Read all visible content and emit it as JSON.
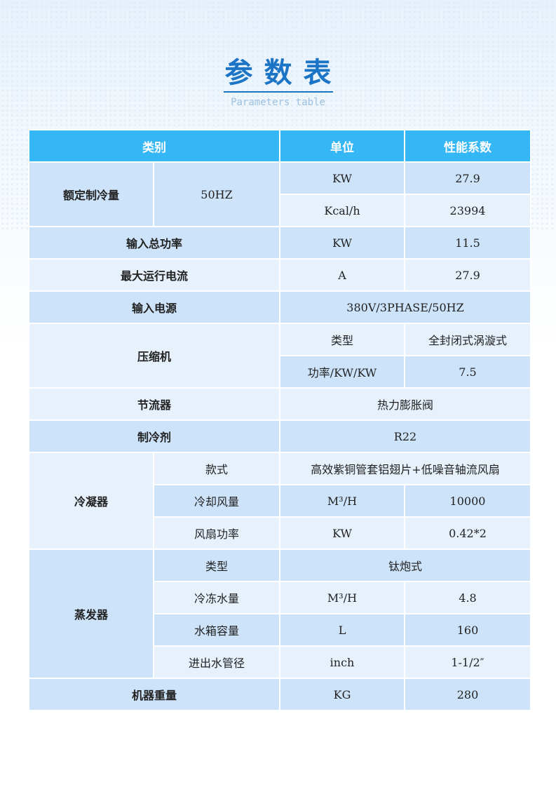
{
  "title": {
    "cn": "参数表",
    "en": "Parameters table"
  },
  "header": {
    "category": "类别",
    "unit": "单位",
    "value": "性能系数"
  },
  "rows": {
    "cooling": {
      "label": "额定制冷量",
      "freq": "50HZ",
      "unit1": "KW",
      "val1": "27.9",
      "unit2": "Kcal/h",
      "val2": "23994"
    },
    "power": {
      "label": "输入总功率",
      "unit": "KW",
      "val": "11.5"
    },
    "current": {
      "label": "最大运行电流",
      "unit": "A",
      "val": "27.9"
    },
    "supply": {
      "label": "输入电源",
      "val": "380V/3PHASE/50HZ"
    },
    "compressor": {
      "label": "压缩机",
      "type_label": "类型",
      "type_val": "全封闭式涡漩式",
      "power_label": "功率/KW/KW",
      "power_val": "7.5"
    },
    "throttle": {
      "label": "节流器",
      "val": "热力膨胀阀"
    },
    "refrigerant": {
      "label": "制冷剂",
      "val": "R22"
    },
    "condenser": {
      "label": "冷凝器",
      "style_label": "款式",
      "style_val": "高效紫铜管套铝翅片+低噪音轴流风扇",
      "air_label": "冷却风量",
      "air_unit": "M³/H",
      "air_val": "10000",
      "fan_label": "风扇功率",
      "fan_unit": "KW",
      "fan_val": "0.42*2"
    },
    "evaporator": {
      "label": "蒸发器",
      "type_label": "类型",
      "type_val": "钛炮式",
      "water_label": "冷冻水量",
      "water_unit": "M³/H",
      "water_val": "4.8",
      "tank_label": "水箱容量",
      "tank_unit": "L",
      "tank_val": "160",
      "pipe_label": "进出水管径",
      "pipe_unit": "inch",
      "pipe_val": "1-1/2″"
    },
    "weight": {
      "label": "机器重量",
      "unit": "KG",
      "val": "280"
    }
  },
  "colors": {
    "header": "#35b6f5",
    "row_dark": "#cde3fa",
    "row_light": "#e6f1fc",
    "title": "#1b74c5"
  }
}
